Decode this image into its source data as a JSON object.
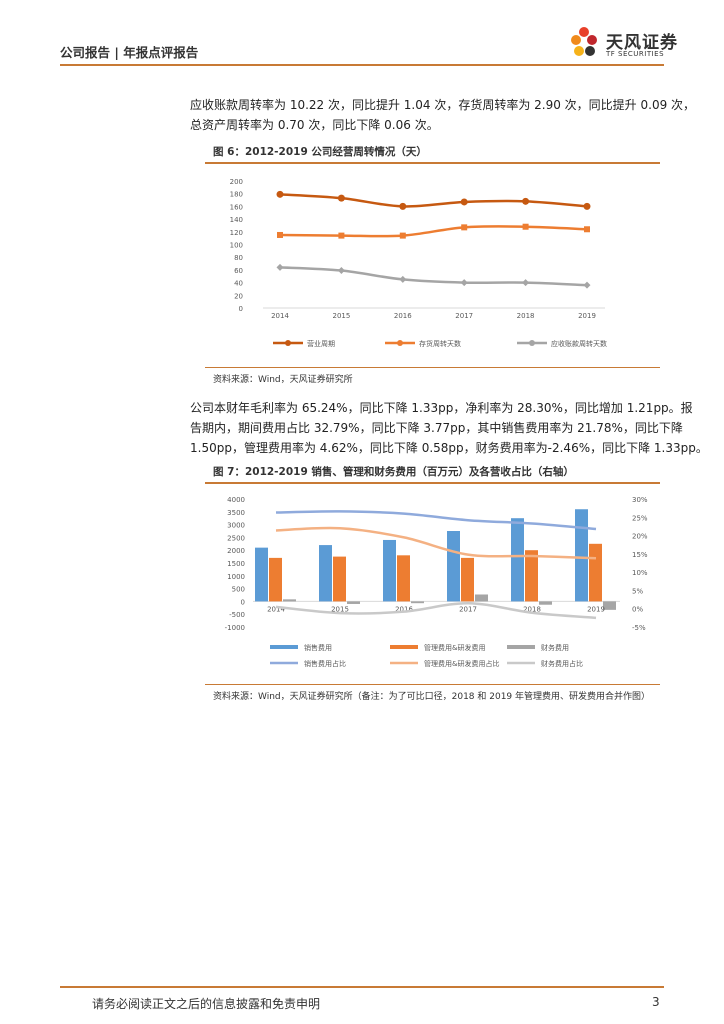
{
  "header": {
    "report_type": "公司报告 | 年报点评报告"
  },
  "logo": {
    "name_cn": "天风证券",
    "name_en": "TF SECURITIES"
  },
  "paragraph1": {
    "line1": "应收账款周转率为 10.22 次，同比提升 1.04 次，存货周转率为 2.90 次，同比提升 0.09 次，",
    "line2": "总资产周转率为 0.70 次，同比下降 0.06 次。"
  },
  "figure6": {
    "title": "图 6：2012-2019 公司经营周转情况（天）",
    "source": "资料来源：Wind，天风证券研究所"
  },
  "paragraph2": {
    "line1": "公司本财年毛利率为 65.24%，同比下降 1.33pp，净利率为 28.30%，同比增加 1.21pp。报",
    "line2": "告期内，期间费用占比 32.79%，同比下降 3.77pp，其中销售费用率为 21.78%，同比下降",
    "line3": "1.50pp，管理费用率为 4.62%，同比下降 0.58pp，财务费用率为-2.46%，同比下降 1.33pp。"
  },
  "figure7": {
    "title": "图 7：2012-2019 销售、管理和财务费用（百万元）及各营收占比（右轴）",
    "source": "资料来源：Wind，天风证券研究所（备注：为了可比口径，2018 和 2019 年管理费用、研发费用合并作图）"
  },
  "footer": {
    "disclaimer": "请务必阅读正文之后的信息披露和免责申明",
    "page": "3"
  },
  "colors": {
    "accent": "#c87a35",
    "dark_orange": "#c65911",
    "orange": "#ed7d31",
    "gray": "#a5a5a5",
    "blue": "#5b9bd5",
    "light_blue": "#8faadc",
    "light_orange": "#f4b183",
    "light_gray": "#c9c9c9"
  },
  "chart_data": [
    {
      "type": "line",
      "x": [
        "2014",
        "2015",
        "2016",
        "2017",
        "2018",
        "2019"
      ],
      "ylim": [
        0,
        200
      ],
      "yticks": [
        "200",
        "180",
        "160",
        "140",
        "120",
        "100",
        "80",
        "60",
        "40",
        "20",
        "0"
      ],
      "series": [
        {
          "name": "营业周期",
          "values": [
            179,
            173,
            160,
            167,
            168,
            160
          ],
          "color": "#c65911"
        },
        {
          "name": "存货周转天数",
          "values": [
            115,
            114,
            114,
            127,
            128,
            124
          ],
          "color": "#ed7d31"
        },
        {
          "name": "应收账款周转天数",
          "values": [
            64,
            59,
            45,
            40,
            40,
            36
          ],
          "color": "#a5a5a5"
        }
      ],
      "legend_position": "bottom",
      "grid": false
    },
    {
      "type": "bar",
      "categories": [
        "2014",
        "2015",
        "2016",
        "2017",
        "2018",
        "2019"
      ],
      "ylim": [
        -1000,
        4000
      ],
      "y2lim": [
        -5,
        30
      ],
      "yticks": [
        "4000",
        "3500",
        "3000",
        "2500",
        "2000",
        "1500",
        "1000",
        "500",
        "0",
        "-500",
        "-1000"
      ],
      "y2ticks": [
        "30%",
        "25%",
        "20%",
        "15%",
        "10%",
        "5%",
        "0%",
        "-5%"
      ],
      "series": [
        {
          "name": "销售费用",
          "values": [
            2100,
            2200,
            2400,
            2750,
            3250,
            3600
          ],
          "axis": "left",
          "kind": "bar",
          "color": "#5b9bd5"
        },
        {
          "name": "管理费用&研发费用",
          "values": [
            1700,
            1750,
            1800,
            1700,
            2000,
            2250
          ],
          "axis": "left",
          "kind": "bar",
          "color": "#ed7d31"
        },
        {
          "name": "财务费用",
          "values": [
            80,
            -100,
            -70,
            270,
            -130,
            -330
          ],
          "axis": "left",
          "kind": "bar",
          "color": "#a5a5a5"
        },
        {
          "name": "销售费用占比",
          "values": [
            26.3,
            26.6,
            26.0,
            24.2,
            23.3,
            21.8
          ],
          "axis": "right",
          "kind": "line",
          "color": "#8faadc"
        },
        {
          "name": "管理费用&研发费用占比",
          "values": [
            21.4,
            22.0,
            19.5,
            14.8,
            14.4,
            13.8
          ],
          "axis": "right",
          "kind": "line",
          "color": "#f4b183"
        },
        {
          "name": "财务费用占比",
          "values": [
            0.5,
            -1.2,
            -0.8,
            1.5,
            -1.1,
            -2.5
          ],
          "axis": "right",
          "kind": "line",
          "color": "#c9c9c9"
        }
      ],
      "legend_position": "bottom",
      "grid": false
    }
  ]
}
